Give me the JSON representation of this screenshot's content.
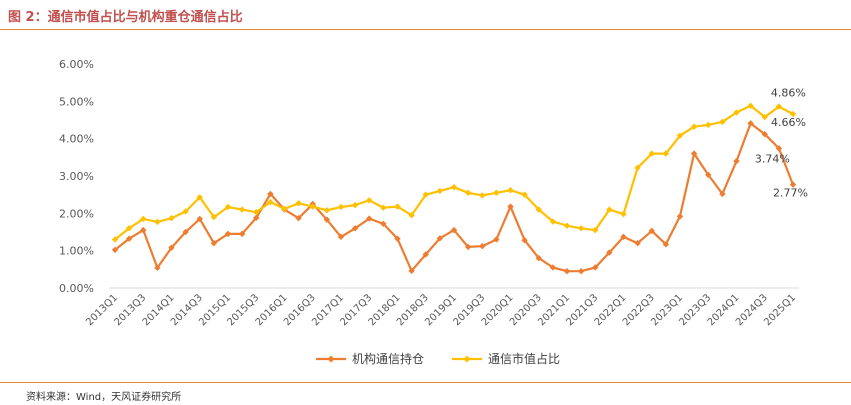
{
  "figure": {
    "title": "图 2：通信市值占比与机构重仓通信占比",
    "source": "资料来源：Wind，天风证券研究所"
  },
  "chart_data": {
    "type": "line",
    "title": "",
    "xlabel": "",
    "ylabel": "",
    "ylim": [
      0,
      0.06
    ],
    "yticks": [
      "0.00%",
      "1.00%",
      "2.00%",
      "3.00%",
      "4.00%",
      "5.00%",
      "6.00%"
    ],
    "grid": false,
    "legend_position": "bottom",
    "x": [
      "2013Q1",
      "2013Q2",
      "2013Q3",
      "2013Q4",
      "2014Q1",
      "2014Q2",
      "2014Q3",
      "2014Q4",
      "2015Q1",
      "2015Q2",
      "2015Q3",
      "2015Q4",
      "2016Q1",
      "2016Q2",
      "2016Q3",
      "2016Q4",
      "2017Q1",
      "2017Q2",
      "2017Q3",
      "2017Q4",
      "2018Q1",
      "2018Q2",
      "2018Q3",
      "2018Q4",
      "2019Q1",
      "2019Q2",
      "2019Q3",
      "2019Q4",
      "2020Q1",
      "2020Q2",
      "2020Q3",
      "2020Q4",
      "2021Q1",
      "2021Q2",
      "2021Q3",
      "2021Q4",
      "2022Q1",
      "2022Q2",
      "2022Q3",
      "2022Q4",
      "2023Q1",
      "2023Q2",
      "2023Q3",
      "2023Q4",
      "2024Q1",
      "2024Q2",
      "2024Q3",
      "2024Q4",
      "2025Q1"
    ],
    "x_tick_labels": [
      "2013Q1",
      "2013Q3",
      "2014Q1",
      "2014Q3",
      "2015Q1",
      "2015Q3",
      "2016Q1",
      "2016Q3",
      "2017Q1",
      "2017Q3",
      "2018Q1",
      "2018Q3",
      "2019Q1",
      "2019Q3",
      "2020Q1",
      "2020Q3",
      "2021Q1",
      "2021Q3",
      "2022Q1",
      "2022Q3",
      "2023Q1",
      "2023Q3",
      "2024Q1",
      "2024Q3",
      "2025Q1"
    ],
    "series": [
      {
        "name": "机构通信持仓",
        "color": "#ed7d31",
        "marker": "diamond",
        "values": [
          0.0102,
          0.0132,
          0.0155,
          0.0054,
          0.0108,
          0.015,
          0.0185,
          0.012,
          0.0145,
          0.0145,
          0.0188,
          0.0252,
          0.021,
          0.0187,
          0.0225,
          0.0183,
          0.0137,
          0.016,
          0.0186,
          0.0172,
          0.0132,
          0.0046,
          0.009,
          0.0133,
          0.0155,
          0.011,
          0.0112,
          0.013,
          0.0218,
          0.0128,
          0.008,
          0.0055,
          0.0045,
          0.0045,
          0.0055,
          0.0095,
          0.0137,
          0.012,
          0.0153,
          0.0117,
          0.0192,
          0.036,
          0.0303,
          0.0252,
          0.034,
          0.0441,
          0.0412,
          0.0374,
          0.0277
        ]
      },
      {
        "name": "通信市值占比",
        "color": "#ffc000",
        "marker": "diamond",
        "values": [
          0.013,
          0.016,
          0.0185,
          0.0177,
          0.0187,
          0.0205,
          0.0243,
          0.019,
          0.0217,
          0.021,
          0.0203,
          0.023,
          0.0212,
          0.0227,
          0.0218,
          0.0208,
          0.0217,
          0.0222,
          0.0235,
          0.0215,
          0.0218,
          0.0195,
          0.025,
          0.026,
          0.027,
          0.0255,
          0.0248,
          0.0255,
          0.0262,
          0.025,
          0.021,
          0.0178,
          0.0167,
          0.016,
          0.0155,
          0.021,
          0.0198,
          0.0322,
          0.036,
          0.036,
          0.0408,
          0.0432,
          0.0437,
          0.0445,
          0.047,
          0.0488,
          0.0458,
          0.0486,
          0.0466
        ]
      }
    ],
    "annotations": [
      {
        "series": 1,
        "x": "2024Q4",
        "text": "4.86%"
      },
      {
        "series": 1,
        "x": "2025Q1",
        "text": "4.66%"
      },
      {
        "series": 0,
        "x": "2024Q4",
        "text": "3.74%"
      },
      {
        "series": 0,
        "x": "2025Q1",
        "text": "2.77%"
      }
    ]
  }
}
